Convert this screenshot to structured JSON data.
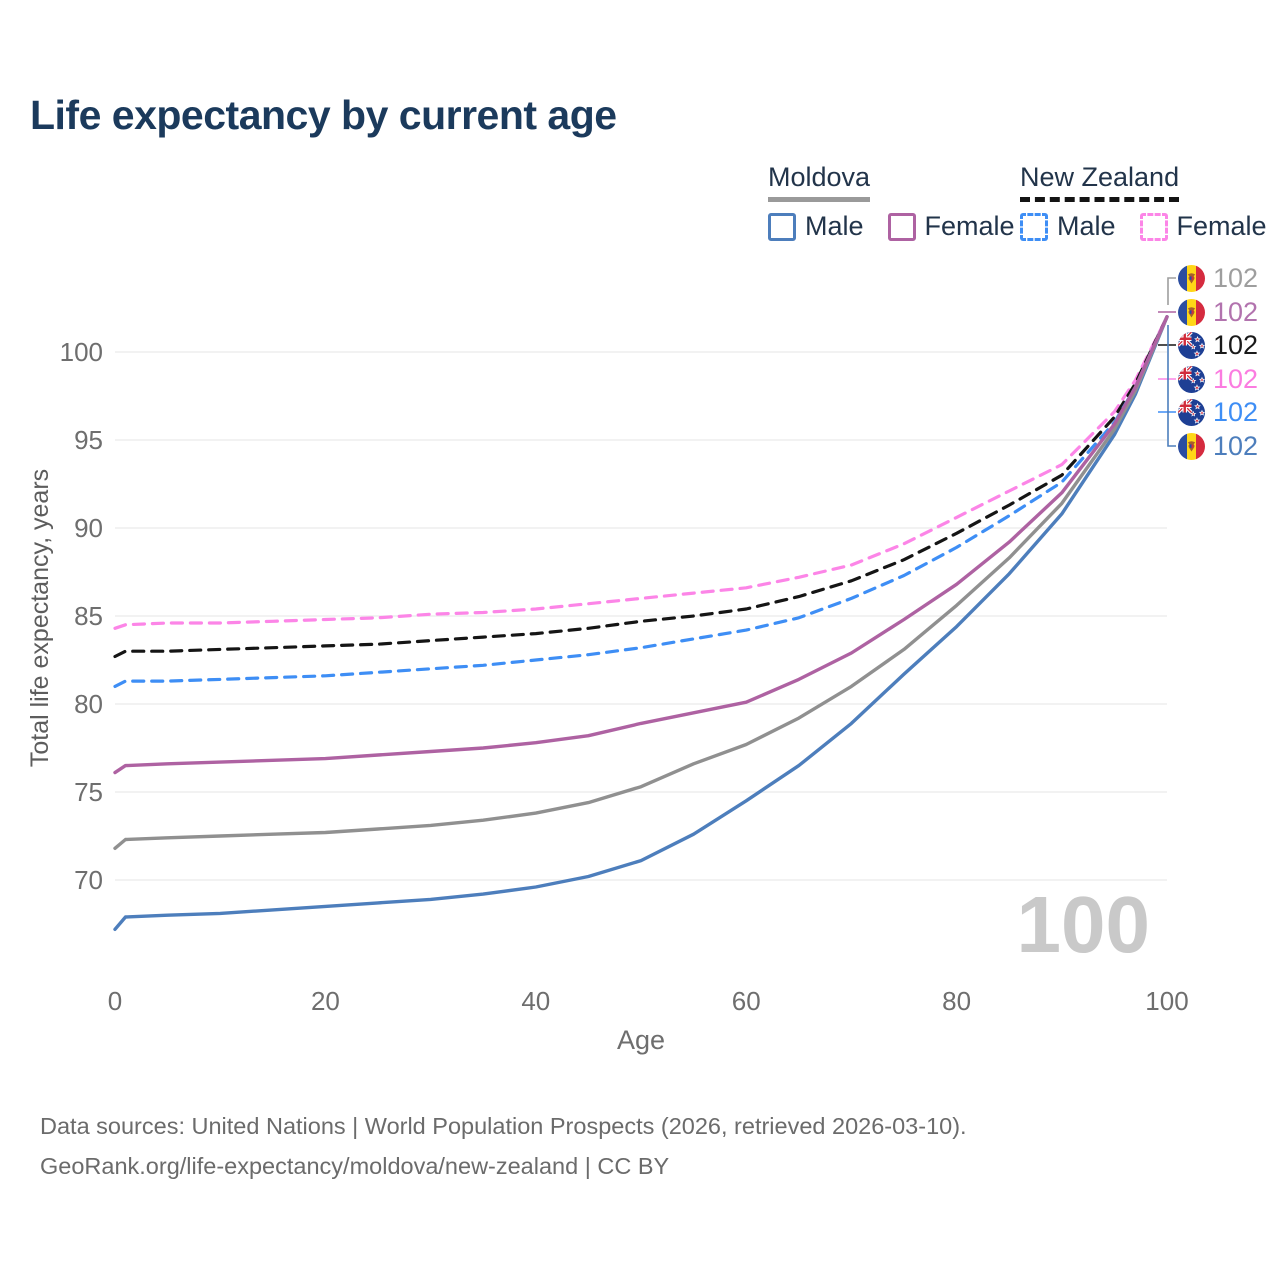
{
  "title": "Life expectancy by current age",
  "legend": {
    "groups": [
      {
        "country": "Moldova",
        "line_style": "solid",
        "underline_color": "#9a9a9a",
        "items": [
          {
            "label": "Male",
            "color": "#4d7ebc",
            "dashed": false
          },
          {
            "label": "Female",
            "color": "#ae62a2",
            "dashed": false
          }
        ]
      },
      {
        "country": "New Zealand",
        "line_style": "dashed",
        "underline_color": "#141414",
        "items": [
          {
            "label": "Male",
            "color": "#3e8ef5",
            "dashed": true
          },
          {
            "label": "Female",
            "color": "#fc85e7",
            "dashed": true
          }
        ]
      }
    ]
  },
  "chart_data": {
    "type": "line",
    "title": "Life expectancy by current age",
    "xlabel": "Age",
    "ylabel": "Total life expectancy, years",
    "xticks": [
      0,
      20,
      40,
      60,
      80,
      100
    ],
    "yticks": [
      70,
      75,
      80,
      85,
      90,
      95,
      100
    ],
    "xlim": [
      0,
      100
    ],
    "ylim": [
      66,
      103.5
    ],
    "grid": "horizontal-only",
    "grid_color": "#ededed",
    "axis_text_color": "#6e6e6e",
    "watermark": "100",
    "watermark_color": "#c9c9c9",
    "x": [
      0,
      1,
      5,
      10,
      15,
      20,
      25,
      30,
      35,
      40,
      45,
      50,
      55,
      60,
      65,
      70,
      75,
      80,
      85,
      90,
      95,
      97,
      100
    ],
    "series": [
      {
        "name": "new-zealand-female",
        "country": "New Zealand",
        "sex": "Female",
        "color": "#fc85e7",
        "dashed": true,
        "values": [
          84.3,
          84.5,
          84.6,
          84.6,
          84.7,
          84.8,
          84.9,
          85.1,
          85.2,
          85.4,
          85.7,
          86.0,
          86.3,
          86.6,
          87.2,
          87.9,
          89.1,
          90.6,
          92.1,
          93.6,
          96.6,
          98.4,
          102
        ]
      },
      {
        "name": "new-zealand-overall",
        "country": "New Zealand",
        "sex": "Both",
        "color": "#151515",
        "dashed": true,
        "values": [
          82.7,
          83.0,
          83.0,
          83.1,
          83.2,
          83.3,
          83.4,
          83.6,
          83.8,
          84.0,
          84.3,
          84.7,
          85.0,
          85.4,
          86.1,
          87.0,
          88.2,
          89.7,
          91.3,
          93.0,
          96.3,
          98.2,
          102
        ]
      },
      {
        "name": "new-zealand-male",
        "country": "New Zealand",
        "sex": "Male",
        "color": "#3e8ef5",
        "dashed": true,
        "values": [
          81.0,
          81.3,
          81.3,
          81.4,
          81.5,
          81.6,
          81.8,
          82.0,
          82.2,
          82.5,
          82.8,
          83.2,
          83.7,
          84.2,
          84.9,
          86.0,
          87.3,
          88.9,
          90.7,
          92.6,
          96.0,
          98.0,
          102
        ]
      },
      {
        "name": "moldova-male",
        "country": "Moldova",
        "sex": "Male",
        "color": "#4d7ebc",
        "dashed": false,
        "values": [
          67.2,
          67.9,
          68.0,
          68.1,
          68.3,
          68.5,
          68.7,
          68.9,
          69.2,
          69.6,
          70.2,
          71.1,
          72.6,
          74.5,
          76.5,
          78.9,
          81.7,
          84.4,
          87.4,
          90.8,
          95.3,
          97.6,
          102
        ]
      },
      {
        "name": "moldova-overall",
        "country": "Moldova",
        "sex": "Both",
        "color": "#909090",
        "dashed": false,
        "values": [
          71.8,
          72.3,
          72.4,
          72.5,
          72.6,
          72.7,
          72.9,
          73.1,
          73.4,
          73.8,
          74.4,
          75.3,
          76.6,
          77.7,
          79.2,
          81.0,
          83.1,
          85.6,
          88.3,
          91.4,
          95.6,
          97.8,
          102
        ]
      },
      {
        "name": "moldova-female",
        "country": "Moldova",
        "sex": "Female",
        "color": "#ae62a2",
        "dashed": false,
        "values": [
          76.1,
          76.5,
          76.6,
          76.7,
          76.8,
          76.9,
          77.1,
          77.3,
          77.5,
          77.8,
          78.2,
          78.9,
          79.5,
          80.1,
          81.4,
          82.9,
          84.8,
          86.8,
          89.2,
          92.0,
          95.9,
          98.0,
          102
        ]
      }
    ]
  },
  "end_labels": [
    {
      "flag": "moldova",
      "value": "102",
      "color": "#9e9e9e",
      "series": "moldova-overall"
    },
    {
      "flag": "moldova",
      "value": "102",
      "color": "#b273ae",
      "series": "moldova-female"
    },
    {
      "flag": "new-zealand",
      "value": "102",
      "color": "#1a1a1a",
      "series": "new-zealand-overall"
    },
    {
      "flag": "new-zealand",
      "value": "102",
      "color": "#fb7ce0",
      "series": "new-zealand-female"
    },
    {
      "flag": "new-zealand",
      "value": "102",
      "color": "#3e8ef5",
      "series": "new-zealand-male"
    },
    {
      "flag": "moldova",
      "value": "102",
      "color": "#4d7ebc",
      "series": "moldova-male"
    }
  ],
  "footer": {
    "line1": "Data sources: United Nations | World Population Prospects (2026, retrieved 2026-03-10).",
    "line2": "GeoRank.org/life-expectancy/moldova/new-zealand | CC BY"
  }
}
